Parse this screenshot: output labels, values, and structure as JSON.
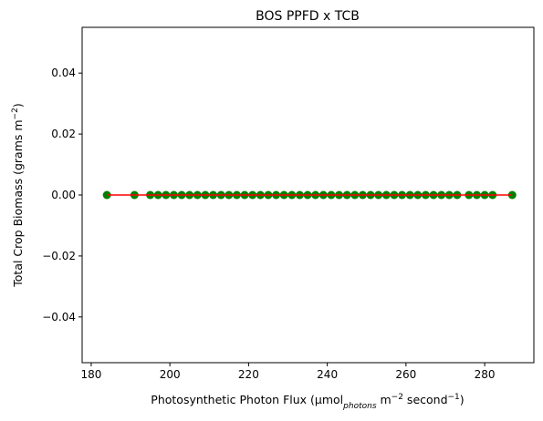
{
  "chart_data": {
    "type": "scatter",
    "title": "BOS PPFD x TCB",
    "xlabel": {
      "prefix": "Photosynthetic Photon Flux (μmol",
      "sub": "photons",
      "unit": " m",
      "unit_sup": "−2",
      "second": " second",
      "second_sup": "−1",
      "suffix": ")"
    },
    "ylabel": {
      "prefix": "Total Crop Biomass (grams m",
      "sup": "−2",
      "suffix": ")"
    },
    "xlim": [
      177.7,
      292.5
    ],
    "ylim": [
      -0.055,
      0.055
    ],
    "xticks": [
      180,
      200,
      220,
      240,
      260,
      280
    ],
    "yticks": [
      -0.04,
      -0.02,
      0.0,
      0.02,
      0.04
    ],
    "ytick_labels": [
      "−0.04",
      "−0.02",
      "0.00",
      "0.02",
      "0.04"
    ],
    "grid": false,
    "series": [
      {
        "kind": "points",
        "color": "#008000",
        "x": [
          184,
          191,
          195,
          197,
          199,
          201,
          203,
          205,
          207,
          209,
          211,
          213,
          215,
          217,
          219,
          221,
          223,
          225,
          227,
          229,
          231,
          233,
          235,
          237,
          239,
          241,
          243,
          245,
          247,
          249,
          251,
          253,
          255,
          257,
          259,
          261,
          263,
          265,
          267,
          269,
          271,
          273,
          276,
          278,
          280,
          282,
          287
        ],
        "y": [
          0,
          0,
          0,
          0,
          0,
          0,
          0,
          0,
          0,
          0,
          0,
          0,
          0,
          0,
          0,
          0,
          0,
          0,
          0,
          0,
          0,
          0,
          0,
          0,
          0,
          0,
          0,
          0,
          0,
          0,
          0,
          0,
          0,
          0,
          0,
          0,
          0,
          0,
          0,
          0,
          0,
          0,
          0,
          0,
          0,
          0,
          0
        ]
      },
      {
        "kind": "fit-line",
        "color": "#ff0000",
        "x": [
          184,
          287
        ],
        "y": [
          0,
          0
        ]
      }
    ]
  }
}
